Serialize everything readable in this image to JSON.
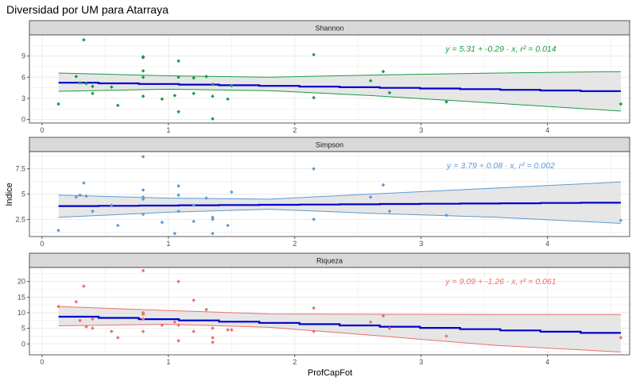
{
  "title": "Diversidad por UM para Atarraya",
  "xlabel": "ProfCapFot",
  "ylabel": "Indice",
  "colors": {
    "trend": "#0000cc",
    "band": "#e3e3e3",
    "strip": "#d9d9d9",
    "panel_bg": "#ffffff",
    "grid": "#ebebeb"
  },
  "chart_data": [
    {
      "type": "scatter",
      "facet": "Shannon",
      "color": "#1a9c3e",
      "equation": "y = 5.31 + -0.29 · x,  r² = 0.014",
      "xlim": [
        -0.1,
        4.65
      ],
      "ylim": [
        -0.5,
        12
      ],
      "x_ticks": [
        0,
        1,
        2,
        3,
        4
      ],
      "y_ticks": [
        0,
        3,
        6,
        9
      ],
      "points": [
        [
          0.13,
          2.2
        ],
        [
          0.27,
          6.1
        ],
        [
          0.3,
          5.2
        ],
        [
          0.33,
          11.3
        ],
        [
          0.35,
          5.1
        ],
        [
          0.4,
          4.7
        ],
        [
          0.4,
          3.7
        ],
        [
          0.55,
          4.6
        ],
        [
          0.6,
          2.0
        ],
        [
          0.8,
          8.9
        ],
        [
          0.8,
          8.8
        ],
        [
          0.8,
          6.9
        ],
        [
          0.8,
          6.0
        ],
        [
          0.8,
          3.3
        ],
        [
          0.95,
          2.9
        ],
        [
          1.05,
          3.4
        ],
        [
          1.08,
          8.3
        ],
        [
          1.08,
          6.0
        ],
        [
          1.08,
          1.1
        ],
        [
          1.2,
          5.9
        ],
        [
          1.2,
          3.7
        ],
        [
          1.3,
          6.1
        ],
        [
          1.35,
          5.0
        ],
        [
          1.35,
          3.3
        ],
        [
          1.35,
          0.1
        ],
        [
          1.47,
          2.9
        ],
        [
          1.5,
          4.8
        ],
        [
          2.15,
          9.2
        ],
        [
          2.15,
          3.1
        ],
        [
          2.6,
          5.5
        ],
        [
          2.7,
          6.8
        ],
        [
          2.75,
          3.8
        ],
        [
          3.2,
          2.5
        ],
        [
          4.58,
          2.2
        ]
      ],
      "fit": {
        "intercept": 5.31,
        "slope": -0.29
      },
      "ci_upper": [
        [
          0.13,
          6.6
        ],
        [
          1.0,
          6.2
        ],
        [
          1.8,
          6.0
        ],
        [
          2.6,
          6.3
        ],
        [
          3.6,
          6.6
        ],
        [
          4.58,
          6.8
        ]
      ],
      "ci_lower": [
        [
          0.13,
          4.0
        ],
        [
          1.0,
          4.3
        ],
        [
          1.8,
          4.1
        ],
        [
          2.6,
          3.4
        ],
        [
          3.6,
          2.3
        ],
        [
          4.58,
          1.2
        ]
      ]
    },
    {
      "type": "scatter",
      "facet": "Simpson",
      "color": "#5b9bd5",
      "equation": "y = 3.79 + 0.08 · x,  r² = 0.002",
      "xlim": [
        -0.1,
        4.65
      ],
      "ylim": [
        0.8,
        9.2
      ],
      "x_ticks": [
        0,
        1,
        2,
        3,
        4
      ],
      "y_ticks": [
        2.5,
        5.0,
        7.5
      ],
      "points": [
        [
          0.13,
          1.4
        ],
        [
          0.27,
          4.7
        ],
        [
          0.3,
          4.9
        ],
        [
          0.33,
          6.1
        ],
        [
          0.35,
          4.8
        ],
        [
          0.4,
          3.3
        ],
        [
          0.55,
          3.9
        ],
        [
          0.6,
          1.9
        ],
        [
          0.8,
          8.7
        ],
        [
          0.8,
          5.4
        ],
        [
          0.8,
          4.7
        ],
        [
          0.8,
          4.5
        ],
        [
          0.8,
          3.0
        ],
        [
          0.95,
          2.2
        ],
        [
          1.05,
          1.1
        ],
        [
          1.08,
          5.8
        ],
        [
          1.08,
          4.9
        ],
        [
          1.08,
          3.3
        ],
        [
          1.2,
          3.9
        ],
        [
          1.2,
          2.3
        ],
        [
          1.3,
          4.6
        ],
        [
          1.35,
          2.7
        ],
        [
          1.35,
          2.5
        ],
        [
          1.35,
          1.1
        ],
        [
          1.47,
          1.9
        ],
        [
          1.5,
          5.2
        ],
        [
          2.15,
          7.5
        ],
        [
          2.15,
          2.5
        ],
        [
          2.6,
          4.7
        ],
        [
          2.7,
          5.9
        ],
        [
          2.75,
          3.3
        ],
        [
          3.2,
          2.9
        ],
        [
          4.58,
          2.4
        ]
      ],
      "fit": {
        "intercept": 3.79,
        "slope": 0.08
      },
      "ci_upper": [
        [
          0.13,
          4.9
        ],
        [
          1.0,
          4.6
        ],
        [
          1.8,
          4.5
        ],
        [
          2.6,
          5.0
        ],
        [
          3.6,
          5.6
        ],
        [
          4.58,
          6.2
        ]
      ],
      "ci_lower": [
        [
          0.13,
          2.7
        ],
        [
          1.0,
          3.2
        ],
        [
          1.8,
          3.5
        ],
        [
          2.6,
          3.1
        ],
        [
          3.6,
          2.7
        ],
        [
          4.58,
          2.1
        ]
      ]
    },
    {
      "type": "scatter",
      "facet": "Riqueza",
      "color": "#e8726a",
      "equation": "y = 9.09 + -1.26 · x,  r² = 0.061",
      "xlim": [
        -0.1,
        4.65
      ],
      "ylim": [
        -3.5,
        24.5
      ],
      "x_ticks": [
        0,
        1,
        2,
        3,
        4
      ],
      "y_ticks": [
        0,
        5,
        10,
        15,
        20
      ],
      "points": [
        [
          0.13,
          12.0
        ],
        [
          0.27,
          13.5
        ],
        [
          0.3,
          7.5
        ],
        [
          0.33,
          18.5
        ],
        [
          0.35,
          5.5
        ],
        [
          0.4,
          8.0
        ],
        [
          0.4,
          5.0
        ],
        [
          0.55,
          4.0
        ],
        [
          0.6,
          2.0
        ],
        [
          0.8,
          23.5
        ],
        [
          0.8,
          10.0
        ],
        [
          0.8,
          9.5
        ],
        [
          0.8,
          8.0
        ],
        [
          0.8,
          4.0
        ],
        [
          0.95,
          6.0
        ],
        [
          1.05,
          7.0
        ],
        [
          1.08,
          20.0
        ],
        [
          1.08,
          6.0
        ],
        [
          1.08,
          1.0
        ],
        [
          1.2,
          14.0
        ],
        [
          1.2,
          4.0
        ],
        [
          1.3,
          11.0
        ],
        [
          1.35,
          5.0
        ],
        [
          1.35,
          2.0
        ],
        [
          1.35,
          0.5
        ],
        [
          1.47,
          4.5
        ],
        [
          1.5,
          4.5
        ],
        [
          2.15,
          11.5
        ],
        [
          2.15,
          4.0
        ],
        [
          2.6,
          7.0
        ],
        [
          2.7,
          9.0
        ],
        [
          2.75,
          5.0
        ],
        [
          3.2,
          2.5
        ],
        [
          4.58,
          2.0
        ]
      ],
      "fit": {
        "intercept": 9.09,
        "slope": -1.26
      },
      "ci_upper": [
        [
          0.13,
          12.0
        ],
        [
          1.0,
          10.7
        ],
        [
          1.8,
          9.6
        ],
        [
          2.6,
          9.5
        ],
        [
          3.6,
          9.4
        ],
        [
          4.58,
          9.4
        ]
      ],
      "ci_lower": [
        [
          0.13,
          5.8
        ],
        [
          1.0,
          6.3
        ],
        [
          1.8,
          5.3
        ],
        [
          2.6,
          2.8
        ],
        [
          3.6,
          -0.5
        ],
        [
          4.58,
          -2.6
        ]
      ]
    }
  ]
}
